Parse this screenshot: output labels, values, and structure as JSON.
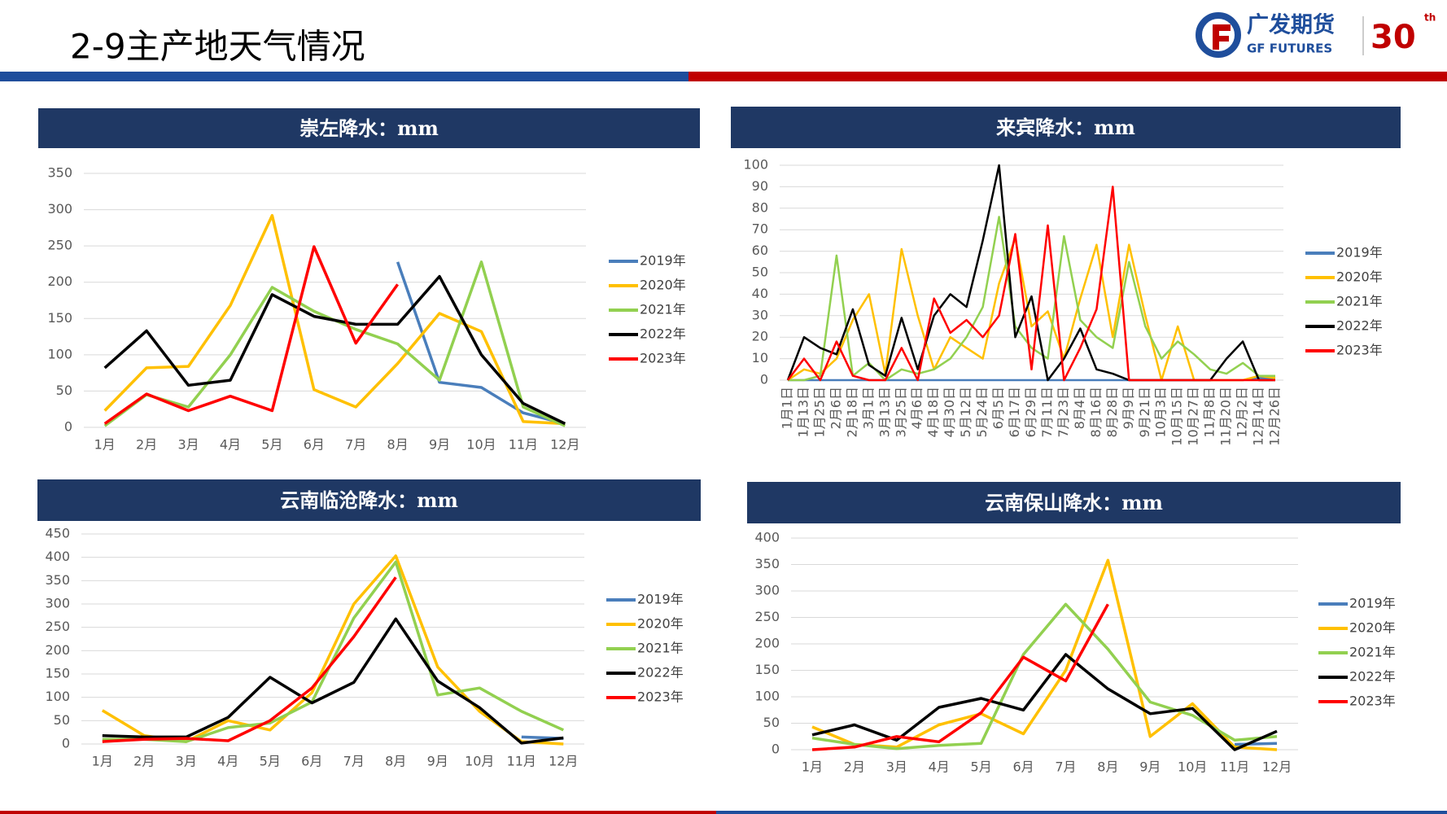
{
  "header": {
    "title": "2-9主产地天气情况",
    "logo_cn": "广发期货",
    "logo_en": "GF FUTURES",
    "anniversary": "30",
    "anniversary_suffix": "th"
  },
  "chart_data": [
    {
      "type": "line",
      "title": "崇左降水：mm",
      "categories": [
        "1月",
        "2月",
        "3月",
        "4月",
        "5月",
        "6月",
        "7月",
        "8月",
        "9月",
        "10月",
        "11月",
        "12月"
      ],
      "ylim": [
        0,
        350
      ],
      "yticks": [
        0,
        50,
        100,
        150,
        200,
        250,
        300,
        350
      ],
      "grid": true,
      "legend": "right",
      "series": [
        {
          "name": "2019年",
          "color": "#4a7ebb",
          "values": [
            null,
            null,
            null,
            null,
            null,
            null,
            null,
            228,
            62,
            55,
            20,
            5
          ]
        },
        {
          "name": "2020年",
          "color": "#ffc000",
          "values": [
            23,
            82,
            84,
            168,
            292,
            52,
            28,
            88,
            157,
            132,
            8,
            5
          ]
        },
        {
          "name": "2021年",
          "color": "#92d050",
          "values": [
            2,
            45,
            28,
            100,
            193,
            160,
            135,
            115,
            65,
            228,
            28,
            2
          ]
        },
        {
          "name": "2022年",
          "color": "#000000",
          "values": [
            82,
            133,
            58,
            65,
            183,
            153,
            142,
            142,
            208,
            100,
            33,
            5
          ]
        },
        {
          "name": "2023年",
          "color": "#ff0000",
          "values": [
            5,
            46,
            23,
            43,
            23,
            249,
            116,
            197,
            null,
            null,
            null,
            null
          ]
        }
      ]
    },
    {
      "type": "line",
      "title": "来宾降水：mm",
      "categories": [
        "1月1日",
        "1月13日",
        "1月25日",
        "2月6日",
        "2月18日",
        "3月1日",
        "3月13日",
        "3月25日",
        "4月6日",
        "4月18日",
        "4月30日",
        "5月12日",
        "5月24日",
        "6月5日",
        "6月17日",
        "6月29日",
        "7月11日",
        "7月23日",
        "8月4日",
        "8月16日",
        "8月28日",
        "9月9日",
        "9月21日",
        "10月3日",
        "10月15日",
        "10月27日",
        "11月8日",
        "11月20日",
        "12月2日",
        "12月14日",
        "12月26日"
      ],
      "ylim": [
        0,
        100
      ],
      "yticks": [
        0,
        10,
        20,
        30,
        40,
        50,
        60,
        70,
        80,
        90,
        100
      ],
      "grid": true,
      "legend": "right",
      "series": [
        {
          "name": "2019年",
          "color": "#4a7ebb",
          "values": [
            0,
            0,
            0,
            0,
            0,
            0,
            0,
            0,
            0,
            0,
            0,
            0,
            0,
            0,
            0,
            0,
            0,
            0,
            0,
            0,
            0,
            0,
            0,
            0,
            0,
            0,
            0,
            0,
            0,
            1,
            1
          ]
        },
        {
          "name": "2020年",
          "color": "#ffc000",
          "values": [
            0,
            5,
            3,
            10,
            28,
            40,
            3,
            61,
            30,
            5,
            20,
            15,
            10,
            45,
            66,
            25,
            32,
            10,
            38,
            63,
            20,
            63,
            30,
            0,
            25,
            0,
            0,
            0,
            0,
            2,
            1
          ]
        },
        {
          "name": "2021年",
          "color": "#92d050",
          "values": [
            0,
            0,
            2,
            58,
            2,
            8,
            0,
            5,
            3,
            5,
            10,
            20,
            34,
            76,
            25,
            15,
            10,
            67,
            28,
            20,
            15,
            55,
            25,
            10,
            18,
            12,
            5,
            3,
            8,
            2,
            2
          ]
        },
        {
          "name": "2022年",
          "color": "#000000",
          "values": [
            0,
            20,
            15,
            12,
            33,
            7,
            2,
            29,
            5,
            30,
            40,
            34,
            65,
            100,
            20,
            39,
            0,
            10,
            24,
            5,
            3,
            0,
            0,
            0,
            0,
            0,
            0,
            10,
            18,
            0,
            0
          ]
        },
        {
          "name": "2023年",
          "color": "#ff0000",
          "values": [
            0,
            10,
            0,
            18,
            2,
            0,
            0,
            15,
            0,
            38,
            22,
            28,
            20,
            30,
            68,
            5,
            72,
            0,
            15,
            33,
            90,
            0,
            0,
            0,
            0,
            0,
            0,
            0,
            0,
            0,
            0
          ]
        }
      ]
    },
    {
      "type": "line",
      "title": "云南临沧降水：mm",
      "categories": [
        "1月",
        "2月",
        "3月",
        "4月",
        "5月",
        "6月",
        "7月",
        "8月",
        "9月",
        "10月",
        "11月",
        "12月"
      ],
      "ylim": [
        0,
        450
      ],
      "yticks": [
        0,
        50,
        100,
        150,
        200,
        250,
        300,
        350,
        400,
        450
      ],
      "grid": true,
      "legend": "right",
      "series": [
        {
          "name": "2019年",
          "color": "#4a7ebb",
          "values": [
            null,
            null,
            null,
            null,
            null,
            null,
            null,
            null,
            null,
            null,
            15,
            12
          ]
        },
        {
          "name": "2020年",
          "color": "#ffc000",
          "values": [
            72,
            18,
            5,
            50,
            30,
            110,
            300,
            403,
            165,
            70,
            5,
            0
          ]
        },
        {
          "name": "2021年",
          "color": "#92d050",
          "values": [
            10,
            10,
            5,
            35,
            45,
            90,
            270,
            390,
            105,
            120,
            70,
            30
          ]
        },
        {
          "name": "2022年",
          "color": "#000000",
          "values": [
            18,
            15,
            15,
            57,
            143,
            88,
            132,
            268,
            135,
            78,
            2,
            13
          ]
        },
        {
          "name": "2023年",
          "color": "#ff0000",
          "values": [
            5,
            10,
            12,
            7,
            50,
            120,
            230,
            357,
            null,
            null,
            null,
            null
          ]
        }
      ]
    },
    {
      "type": "line",
      "title": "云南保山降水：mm",
      "categories": [
        "1月",
        "2月",
        "3月",
        "4月",
        "5月",
        "6月",
        "7月",
        "8月",
        "9月",
        "10月",
        "11月",
        "12月"
      ],
      "ylim": [
        0,
        400
      ],
      "yticks": [
        0,
        50,
        100,
        150,
        200,
        250,
        300,
        350,
        400
      ],
      "grid": true,
      "legend": "right",
      "series": [
        {
          "name": "2019年",
          "color": "#4a7ebb",
          "values": [
            null,
            null,
            null,
            null,
            null,
            null,
            null,
            null,
            null,
            null,
            10,
            12
          ]
        },
        {
          "name": "2020年",
          "color": "#ffc000",
          "values": [
            43,
            10,
            5,
            47,
            68,
            30,
            150,
            358,
            25,
            87,
            5,
            0
          ]
        },
        {
          "name": "2021年",
          "color": "#92d050",
          "values": [
            22,
            10,
            2,
            8,
            12,
            180,
            275,
            190,
            90,
            65,
            18,
            25
          ]
        },
        {
          "name": "2022年",
          "color": "#000000",
          "values": [
            28,
            47,
            18,
            80,
            97,
            75,
            180,
            115,
            68,
            78,
            0,
            35
          ]
        },
        {
          "name": "2023年",
          "color": "#ff0000",
          "values": [
            0,
            5,
            25,
            15,
            70,
            175,
            130,
            275,
            null,
            null,
            null,
            null
          ]
        }
      ]
    }
  ]
}
